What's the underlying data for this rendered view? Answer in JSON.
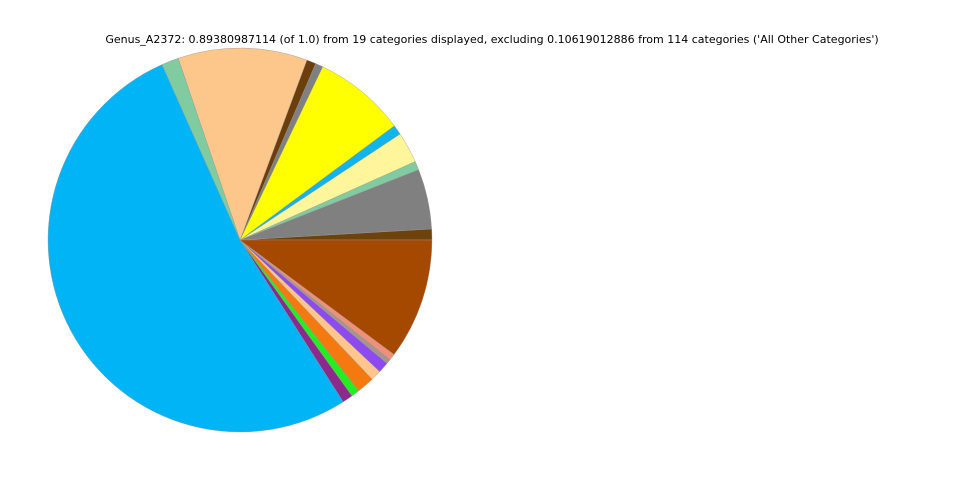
{
  "chart_data": {
    "type": "pie",
    "title": "Genus_A2372: 0.89380987114 (of 1.0) from 19 categories displayed, excluding 0.10619012886 from 114 categories ('All Other Categories')",
    "categories": [
      null,
      null,
      null,
      null,
      null,
      null,
      null,
      null,
      null,
      null,
      null,
      null,
      null,
      null,
      null,
      null,
      null,
      null,
      null
    ],
    "values": [
      0.0082,
      0.0452,
      0.0065,
      0.0233,
      0.0074,
      0.0695,
      0.0057,
      0.007,
      0.0973,
      0.0129,
      0.468,
      0.0079,
      0.0062,
      0.0132,
      0.0079,
      0.0082,
      0.0037,
      0.0047,
      0.0909
    ],
    "colors": [
      "#6e420c",
      "#808080",
      "#80cba0",
      "#fff59a",
      "#11b5ea",
      "#ffff00",
      "#808080",
      "#6b3e0c",
      "#fdc68a",
      "#80cba0",
      "#00b4f5",
      "#8b2a8b",
      "#22ee22",
      "#f47a10",
      "#fec68c",
      "#8d4aef",
      "#a8948a",
      "#f0907a",
      "#a54800"
    ],
    "start_angle": 0,
    "counterclock": true
  }
}
